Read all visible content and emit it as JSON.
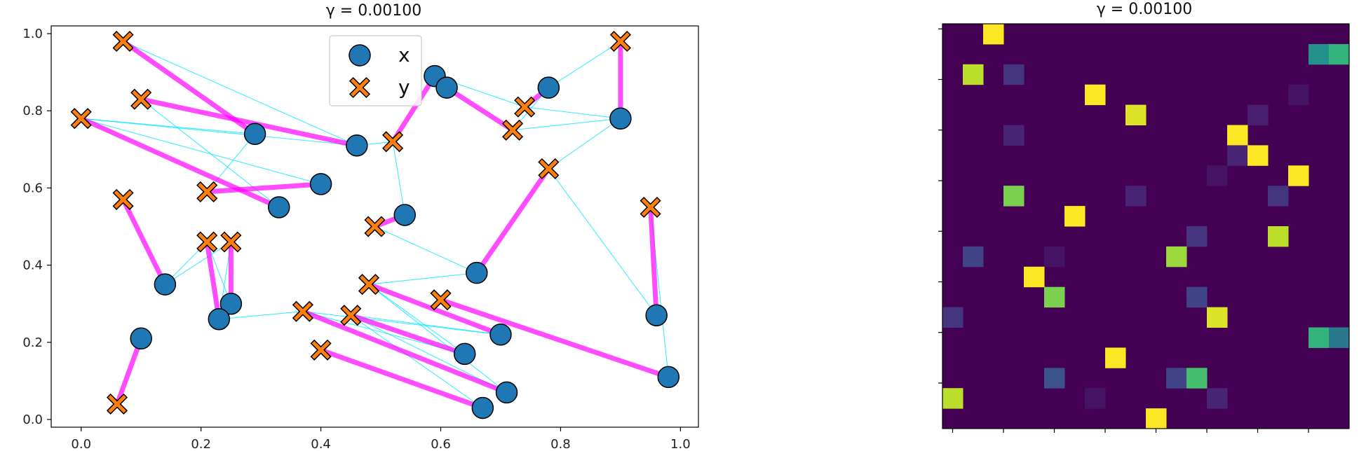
{
  "colors": {
    "x_marker": "#1f77b4",
    "y_marker": "#ff7f0e",
    "primary_edge": "#ff00ff",
    "secondary_edge": "#00e5ff",
    "heatmap_bg": "#440154"
  },
  "chart_data": [
    {
      "type": "scatter",
      "title": "γ = 0.00100",
      "xlim": [
        -0.05,
        1.03
      ],
      "ylim": [
        -0.02,
        1.02
      ],
      "x_ticks": [
        "0.0",
        "0.2",
        "0.4",
        "0.6",
        "0.8",
        "1.0"
      ],
      "y_ticks": [
        "0.0",
        "0.2",
        "0.4",
        "0.6",
        "0.8",
        "1.0"
      ],
      "legend": {
        "position": "top-center",
        "entries": [
          "x",
          "y"
        ]
      },
      "series": [
        {
          "name": "x",
          "marker": "circle",
          "points": [
            [
              0.29,
              0.74
            ],
            [
              0.46,
              0.71
            ],
            [
              0.4,
              0.61
            ],
            [
              0.33,
              0.55
            ],
            [
              0.14,
              0.35
            ],
            [
              0.25,
              0.3
            ],
            [
              0.23,
              0.26
            ],
            [
              0.1,
              0.21
            ],
            [
              0.54,
              0.53
            ],
            [
              0.66,
              0.38
            ],
            [
              0.59,
              0.89
            ],
            [
              0.61,
              0.86
            ],
            [
              0.78,
              0.86
            ],
            [
              0.9,
              0.78
            ],
            [
              0.96,
              0.27
            ],
            [
              0.98,
              0.11
            ],
            [
              0.7,
              0.22
            ],
            [
              0.64,
              0.17
            ],
            [
              0.71,
              0.07
            ],
            [
              0.67,
              0.03
            ]
          ]
        },
        {
          "name": "y",
          "marker": "x",
          "points": [
            [
              0.07,
              0.98
            ],
            [
              0.1,
              0.83
            ],
            [
              0.0,
              0.78
            ],
            [
              0.21,
              0.59
            ],
            [
              0.07,
              0.57
            ],
            [
              0.21,
              0.46
            ],
            [
              0.25,
              0.46
            ],
            [
              0.06,
              0.04
            ],
            [
              0.52,
              0.72
            ],
            [
              0.49,
              0.5
            ],
            [
              0.74,
              0.81
            ],
            [
              0.72,
              0.75
            ],
            [
              0.78,
              0.65
            ],
            [
              0.9,
              0.98
            ],
            [
              0.95,
              0.55
            ],
            [
              0.48,
              0.35
            ],
            [
              0.6,
              0.31
            ],
            [
              0.37,
              0.28
            ],
            [
              0.45,
              0.27
            ],
            [
              0.4,
              0.18
            ]
          ]
        }
      ],
      "primary_edges": [
        [
          0,
          0
        ],
        [
          1,
          1
        ],
        [
          2,
          3
        ],
        [
          3,
          2
        ],
        [
          4,
          4
        ],
        [
          5,
          6
        ],
        [
          6,
          5
        ],
        [
          7,
          7
        ],
        [
          8,
          9
        ],
        [
          9,
          12
        ],
        [
          10,
          8
        ],
        [
          11,
          11
        ],
        [
          12,
          10
        ],
        [
          13,
          13
        ],
        [
          14,
          14
        ],
        [
          15,
          16
        ],
        [
          16,
          15
        ],
        [
          17,
          18
        ],
        [
          18,
          17
        ],
        [
          19,
          19
        ]
      ],
      "secondary_edges": [
        [
          0,
          2
        ],
        [
          0,
          3
        ],
        [
          1,
          2
        ],
        [
          3,
          1
        ],
        [
          2,
          2
        ],
        [
          4,
          5
        ],
        [
          4,
          6
        ],
        [
          6,
          17
        ],
        [
          5,
          5
        ],
        [
          6,
          6
        ],
        [
          9,
          15
        ],
        [
          9,
          9
        ],
        [
          8,
          8
        ],
        [
          1,
          8
        ],
        [
          10,
          10
        ],
        [
          12,
          11
        ],
        [
          13,
          10
        ],
        [
          13,
          11
        ],
        [
          13,
          12
        ],
        [
          12,
          13
        ],
        [
          15,
          14
        ],
        [
          14,
          12
        ],
        [
          16,
          17
        ],
        [
          17,
          17
        ],
        [
          18,
          18
        ],
        [
          19,
          18
        ],
        [
          18,
          15
        ],
        [
          17,
          15
        ],
        [
          16,
          18
        ],
        [
          1,
          0
        ]
      ]
    },
    {
      "type": "heatmap",
      "title": "γ = 0.00100",
      "rows": 20,
      "cols": 20,
      "cells": [
        [
          0,
          2,
          1.0
        ],
        [
          1,
          18,
          0.5
        ],
        [
          1,
          19,
          0.65
        ],
        [
          2,
          1,
          0.9
        ],
        [
          2,
          3,
          0.15
        ],
        [
          3,
          7,
          1.0
        ],
        [
          3,
          17,
          0.05
        ],
        [
          4,
          9,
          0.95
        ],
        [
          4,
          15,
          0.08
        ],
        [
          5,
          3,
          0.1
        ],
        [
          5,
          14,
          1.0
        ],
        [
          6,
          14,
          0.1
        ],
        [
          6,
          15,
          1.0
        ],
        [
          7,
          13,
          0.05
        ],
        [
          7,
          17,
          1.0
        ],
        [
          8,
          3,
          0.8
        ],
        [
          8,
          9,
          0.1
        ],
        [
          8,
          16,
          0.15
        ],
        [
          9,
          6,
          1.0
        ],
        [
          10,
          12,
          0.15
        ],
        [
          10,
          16,
          0.9
        ],
        [
          11,
          1,
          0.2
        ],
        [
          11,
          5,
          0.05
        ],
        [
          11,
          11,
          0.85
        ],
        [
          12,
          4,
          1.0
        ],
        [
          13,
          5,
          0.8
        ],
        [
          13,
          12,
          0.2
        ],
        [
          14,
          0,
          0.15
        ],
        [
          14,
          13,
          0.95
        ],
        [
          15,
          18,
          0.65
        ],
        [
          15,
          19,
          0.4
        ],
        [
          16,
          8,
          1.0
        ],
        [
          17,
          5,
          0.25
        ],
        [
          17,
          11,
          0.2
        ],
        [
          17,
          12,
          0.7
        ],
        [
          18,
          0,
          0.9
        ],
        [
          18,
          7,
          0.05
        ],
        [
          18,
          13,
          0.1
        ],
        [
          19,
          10,
          1.0
        ]
      ]
    }
  ]
}
